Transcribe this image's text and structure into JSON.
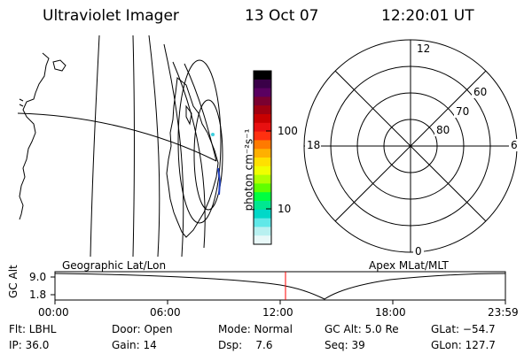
{
  "header": {
    "title": "Ultraviolet Imager",
    "date": "13 Oct 07",
    "time": "12:20:01 UT"
  },
  "left_map": {
    "caption": "Geographic Lat/Lon"
  },
  "polar": {
    "caption": "Apex MLat/MLT",
    "mlt_labels": {
      "top": "12",
      "left": "18",
      "right": "6",
      "bottom": "0"
    },
    "lat_labels": [
      "60",
      "70",
      "80"
    ]
  },
  "colorbar": {
    "unit_label": "photon cm⁻²s⁻¹",
    "ticks": [
      "100",
      "10"
    ],
    "colors": [
      "#000000",
      "#3a0048",
      "#5a0060",
      "#7a0030",
      "#a00010",
      "#c80000",
      "#e81010",
      "#ff3010",
      "#ff7a00",
      "#ffb000",
      "#ffe000",
      "#f0ff00",
      "#b0ff00",
      "#60ff00",
      "#00ff40",
      "#00e890",
      "#00d8c8",
      "#60e8e8",
      "#b8f0f0",
      "#e8f8f8"
    ]
  },
  "orbit_plot": {
    "y_axis_label": "GC Alt",
    "y_ticks": [
      "9.0",
      "1.8"
    ],
    "x_ticks": [
      "00:00",
      "06:00",
      "12:00",
      "18:00",
      "23:59"
    ],
    "marker_color": "#ff0000"
  },
  "footer": {
    "filter": "Flt: LBHL",
    "door": "Door: Open",
    "mode": "Mode: Normal",
    "gc_alt": "GC Alt: 5.0 Re",
    "glat": "GLat: −54.7",
    "ip": "IP: 36.0",
    "gain": "Gain: 14",
    "dsp": "Dsp:    7.6",
    "seq": "Seq: 39",
    "glon": "GLon: 127.7"
  }
}
